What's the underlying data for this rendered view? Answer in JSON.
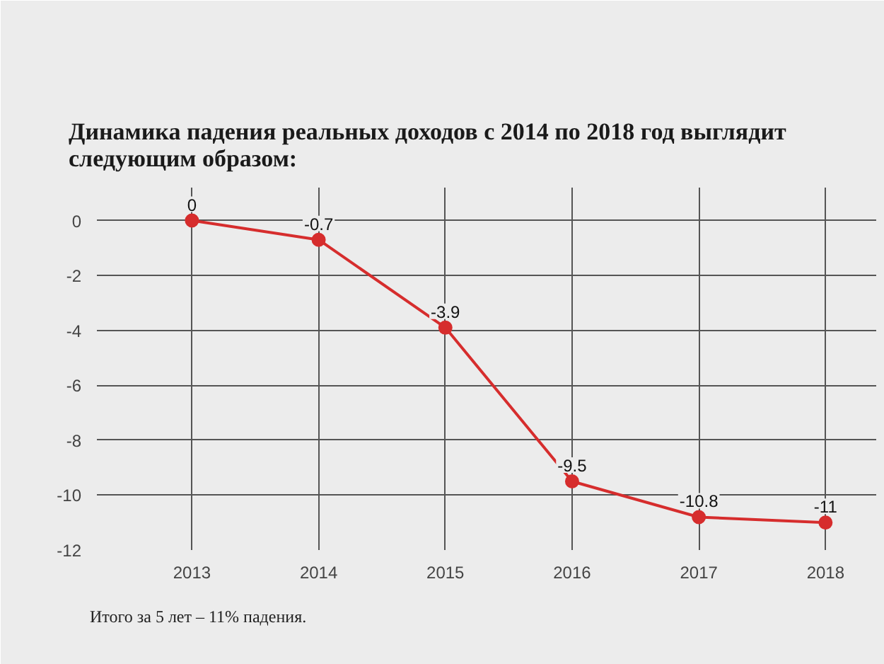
{
  "chart_data": {
    "type": "line",
    "title": "Динамика падения реальных доходов с 2014 по 2018 год выглядит следующим образом:",
    "x": [
      2013,
      2014,
      2015,
      2016,
      2017,
      2018
    ],
    "series": [
      {
        "color": "#d62d2d",
        "values": [
          0,
          -0.7,
          -3.9,
          -9.5,
          -10.8,
          -11
        ]
      }
    ],
    "xlim": [
      2012.25,
      2018.4
    ],
    "xticks": [
      2013,
      2014,
      2015,
      2016,
      2017,
      2018
    ],
    "ylim": [
      -12,
      1.2
    ],
    "yticks": [
      -12,
      -10,
      -8,
      -6,
      -4,
      -2,
      0
    ],
    "grid": true,
    "marker": "circle",
    "line_style": "solid",
    "data_labels": true,
    "annotations": [
      "Итого за 5 лет – 11% падения."
    ]
  }
}
